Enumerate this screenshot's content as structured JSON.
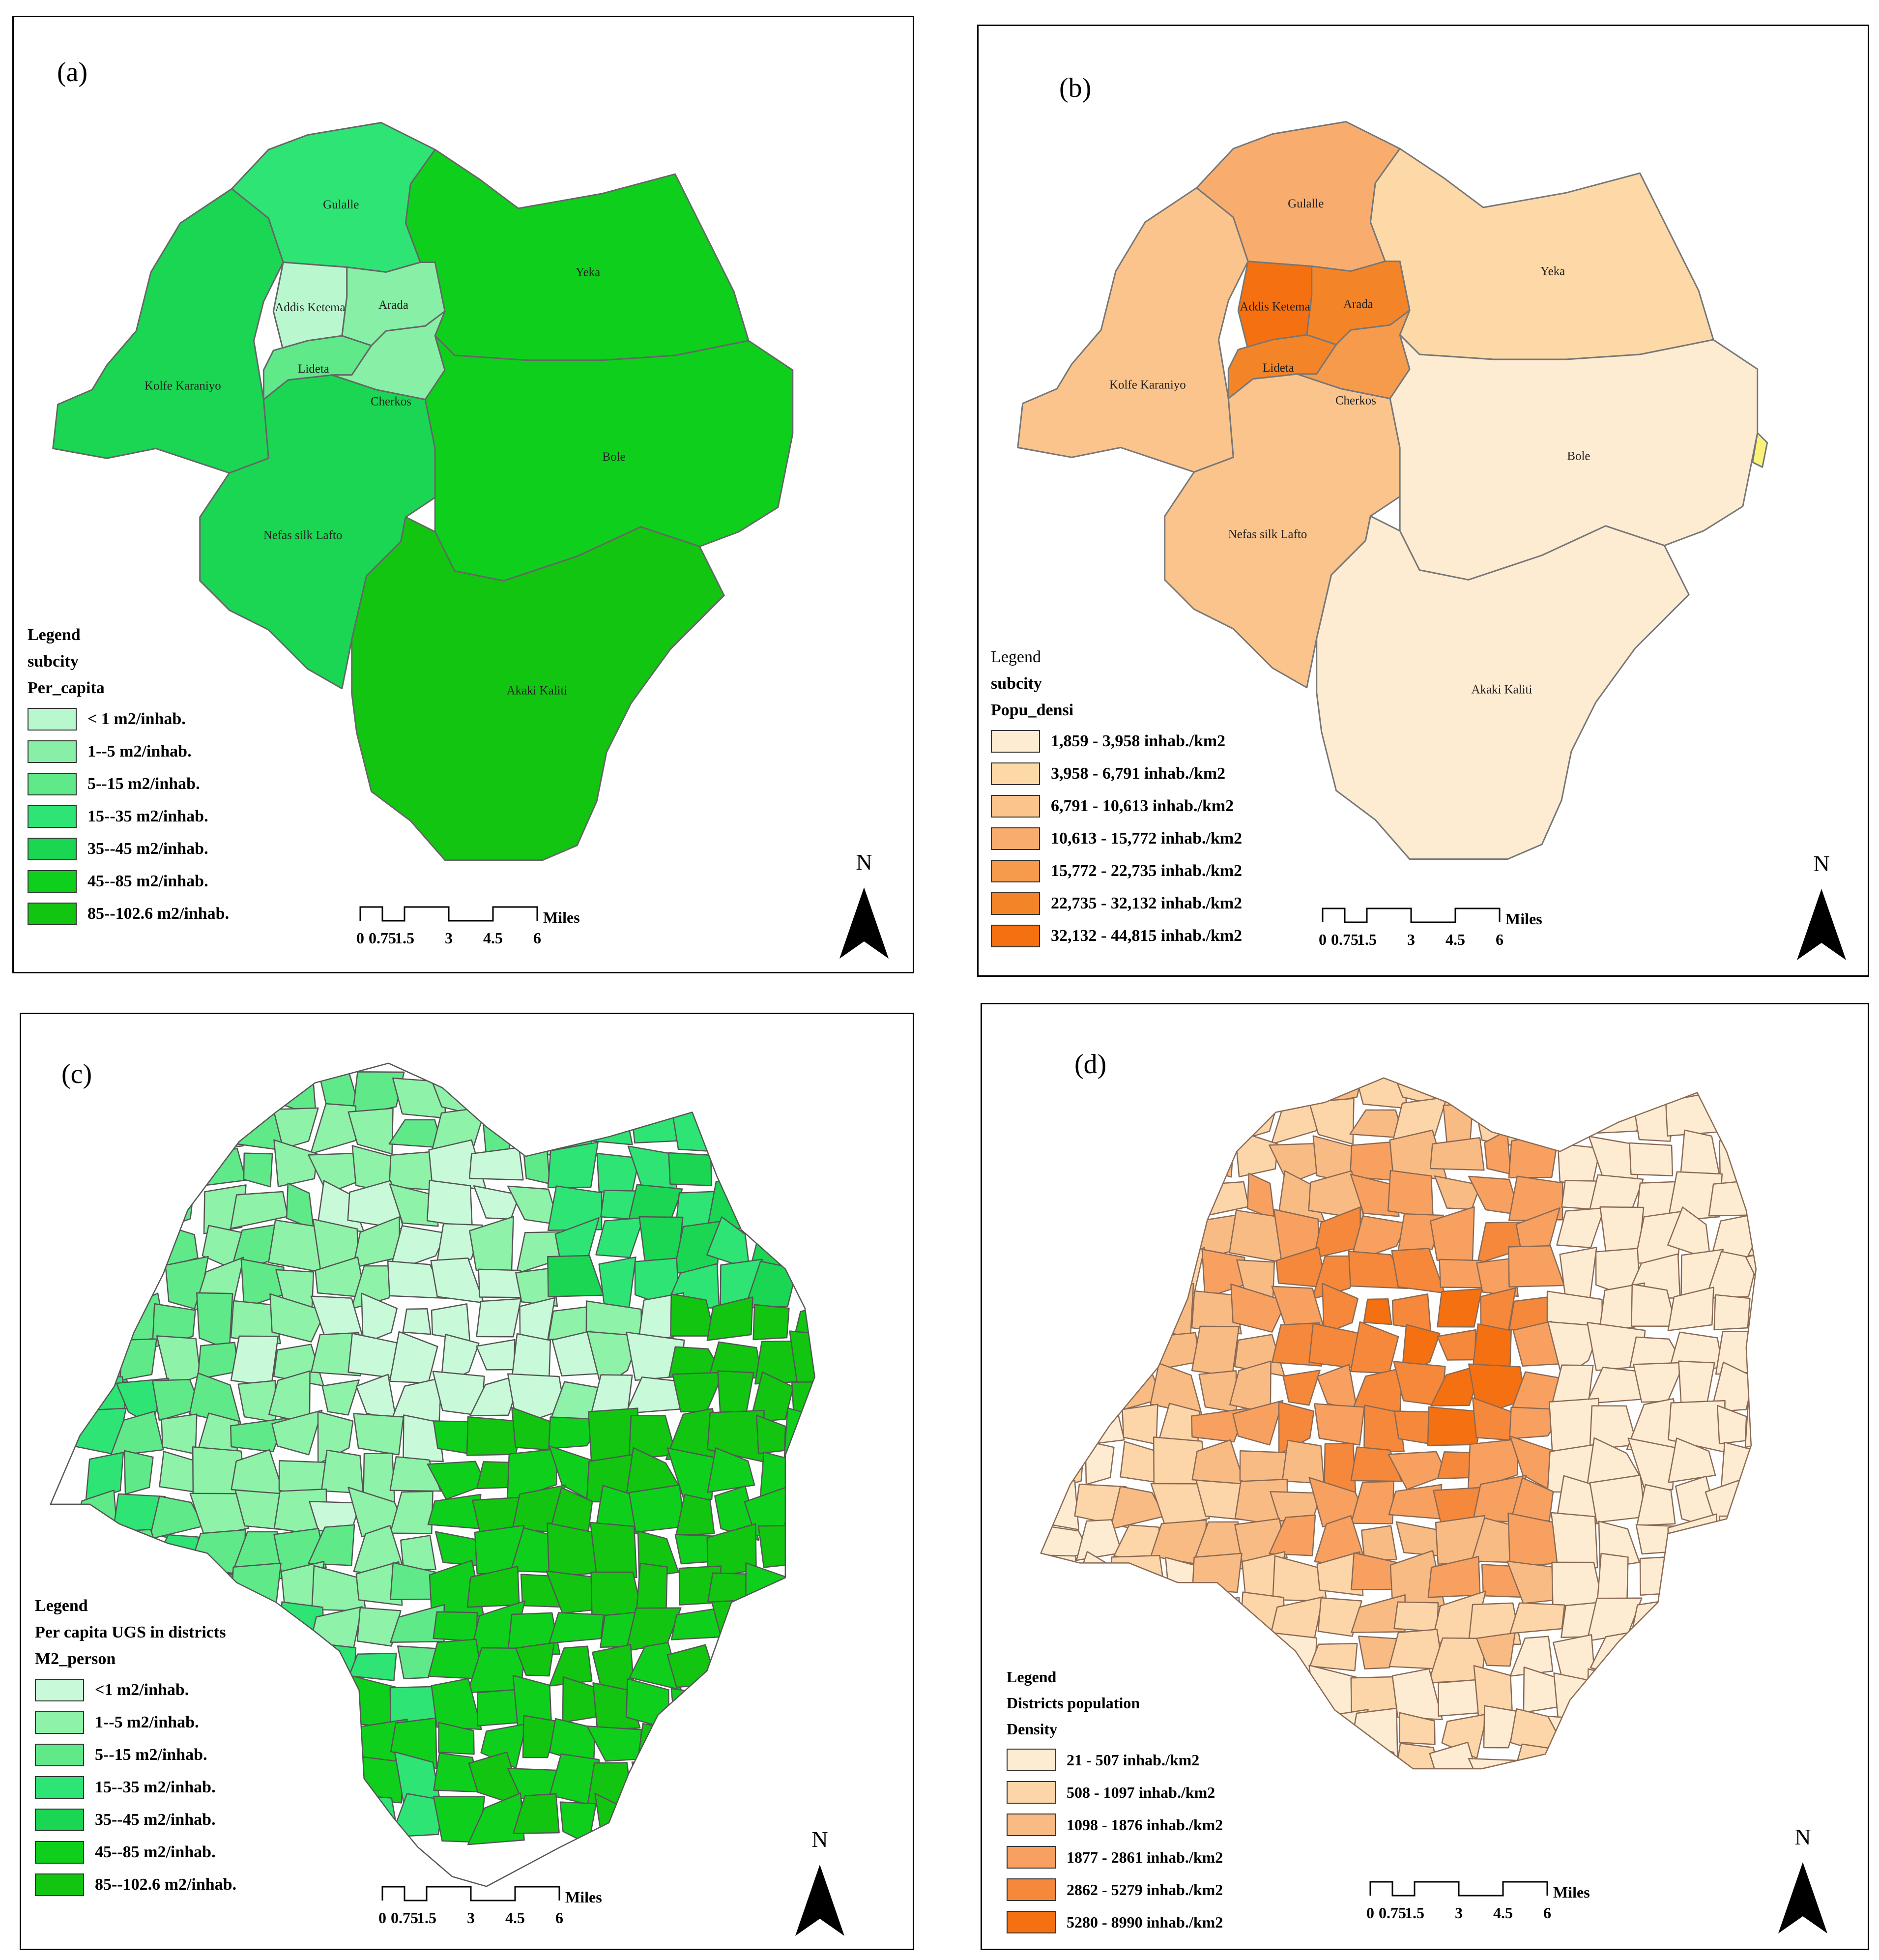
{
  "panels": {
    "a": {
      "label": "(a)",
      "legend": {
        "title": "Legend",
        "subtitle": "subcity",
        "field": "Per_capita",
        "items": [
          {
            "label": "< 1 m2/inhab.",
            "color": "#b9f8cf"
          },
          {
            "label": "1--5 m2/inhab.",
            "color": "#87f0a6"
          },
          {
            "label": "5--15 m2/inhab.",
            "color": "#5fe988"
          },
          {
            "label": "15--35 m2/inhab.",
            "color": "#2ee474"
          },
          {
            "label": "35--45 m2/inhab.",
            "color": "#1ad653"
          },
          {
            "label": "45--85 m2/inhab.",
            "color": "#0ed01c"
          },
          {
            "label": "85--102.6 m2/inhab.",
            "color": "#11c511"
          }
        ]
      },
      "regions": {
        "gulalle": "Gulalle",
        "yeka": "Yeka",
        "addis_ketema": "Addis Ketema",
        "arada": "Arada",
        "kolfe": "Kolfe Karaniyo",
        "lideta": "Lideta",
        "cherkos": "Cherkos",
        "bole": "Bole",
        "nefas": "Nefas silk Lafto",
        "akaki": "Akaki Kaliti"
      }
    },
    "b": {
      "label": "(b)",
      "legend": {
        "title": "Legend",
        "subtitle": "subcity",
        "field": "Popu_densi",
        "items": [
          {
            "label": "1,859 - 3,958  inhab./km2",
            "color": "#fdebd2"
          },
          {
            "label": "3,958 - 6,791 inhab./km2",
            "color": "#fcd9a6"
          },
          {
            "label": "6,791 - 10,613 inhab./km2",
            "color": "#fbc48c"
          },
          {
            "label": "10,613 - 15,772 inhab./km2",
            "color": "#f8ad6e"
          },
          {
            "label": "15,772 - 22,735 inhab./km2",
            "color": "#f69a4c"
          },
          {
            "label": "22,735 - 32,132 inhab./km2",
            "color": "#f48428"
          },
          {
            "label": "32,132 - 44,815 inhab./km2",
            "color": "#f47010"
          }
        ]
      },
      "regions": {
        "gulalle": "Gulalle",
        "yeka": "Yeka",
        "addis_ketema": "Addis Ketema",
        "arada": "Arada",
        "kolfe": "Kolfe Karaniyo",
        "lideta": "Lideta",
        "cherkos": "Cherkos",
        "bole": "Bole",
        "nefas": "Nefas silk Lafto",
        "akaki": "Akaki Kaliti"
      }
    },
    "c": {
      "label": "(c)",
      "legend": {
        "title": "Legend",
        "subtitle": "Per capita UGS in districts",
        "field": "M2_person",
        "items": [
          {
            "label": "<1 m2/inhab.",
            "color": "#c8f9d8"
          },
          {
            "label": "1--5 m2/inhab.",
            "color": "#8ef2a8"
          },
          {
            "label": "5--15 m2/inhab.",
            "color": "#5fe988"
          },
          {
            "label": "15--35 m2/inhab.",
            "color": "#2ee474"
          },
          {
            "label": "35--45 m2/inhab.",
            "color": "#1ad653"
          },
          {
            "label": "45--85 m2/inhab.",
            "color": "#0ed01c"
          },
          {
            "label": "85--102.6  m2/inhab.",
            "color": "#11c511"
          }
        ]
      }
    },
    "d": {
      "label": "(d)",
      "legend": {
        "title": "Legend",
        "subtitle": "Districts population",
        "field": "Density",
        "items": [
          {
            "label": "21 - 507 inhab./km2",
            "color": "#fdebd2"
          },
          {
            "label": "508 - 1097  inhab./km2",
            "color": "#fcd5a8"
          },
          {
            "label": "1098 - 1876  inhab./km2",
            "color": "#f9bb84"
          },
          {
            "label": "1877 - 2861  inhab./km2",
            "color": "#f7a060"
          },
          {
            "label": "2862 - 5279  inhab./km2",
            "color": "#f5883a"
          },
          {
            "label": "5280 - 8990  inhab./km2",
            "color": "#f47010"
          }
        ]
      }
    }
  },
  "scalebar": {
    "unit": "Miles",
    "ticks": [
      "0",
      "0.75",
      "1.5",
      "3",
      "4.5",
      "6"
    ]
  },
  "north_label": "N"
}
